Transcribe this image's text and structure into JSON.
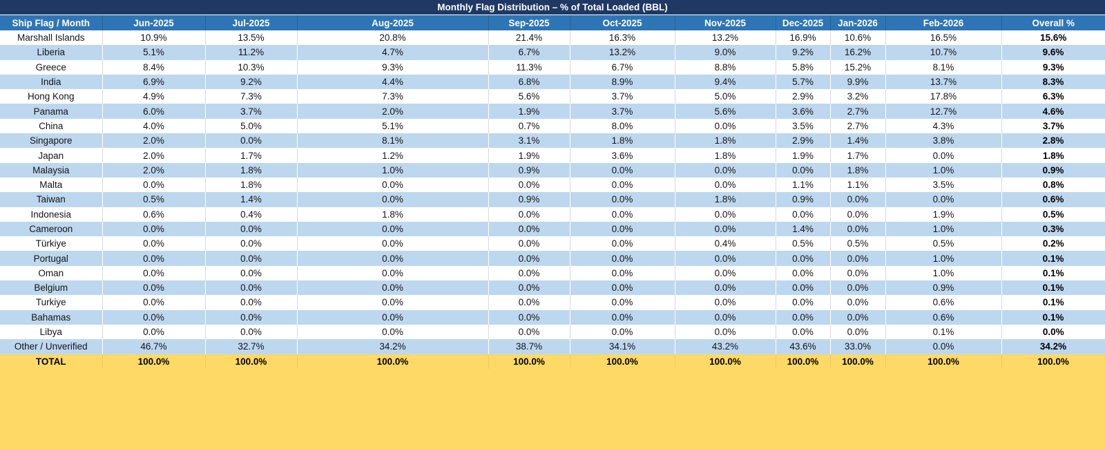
{
  "title": "Monthly Flag Distribution – % of Total Loaded (BBL)",
  "colors": {
    "title_bar_bg": "#1F3864",
    "header_bg": "#2E75B6",
    "band_row_bg": "#BDD7EE",
    "white_row_bg": "#FFFFFF",
    "total_row_bg": "#FFD966",
    "header_text": "#FFFFFF",
    "body_text": "#000000"
  },
  "chart_data": {
    "type": "table",
    "columns": [
      "Ship Flag / Month",
      "Jun-2025",
      "Jul-2025",
      "Aug-2025",
      "Sep-2025",
      "Oct-2025",
      "Nov-2025",
      "Dec-2025",
      "Jan-2026",
      "Feb-2026",
      "Overall %"
    ],
    "rows": [
      {
        "flag": "Marshall Islands",
        "values": [
          "10.9%",
          "13.5%",
          "20.8%",
          "21.4%",
          "16.3%",
          "13.2%",
          "16.9%",
          "10.6%",
          "16.5%",
          "15.6%"
        ]
      },
      {
        "flag": "Liberia",
        "values": [
          "5.1%",
          "11.2%",
          "4.7%",
          "6.7%",
          "13.2%",
          "9.0%",
          "9.2%",
          "16.2%",
          "10.7%",
          "9.6%"
        ]
      },
      {
        "flag": "Greece",
        "values": [
          "8.4%",
          "10.3%",
          "9.3%",
          "11.3%",
          "6.7%",
          "8.8%",
          "5.8%",
          "15.2%",
          "8.1%",
          "9.3%"
        ]
      },
      {
        "flag": "India",
        "values": [
          "6.9%",
          "9.2%",
          "4.4%",
          "6.8%",
          "8.9%",
          "9.4%",
          "5.7%",
          "9.9%",
          "13.7%",
          "8.3%"
        ]
      },
      {
        "flag": "Hong Kong",
        "values": [
          "4.9%",
          "7.3%",
          "7.3%",
          "5.6%",
          "3.7%",
          "5.0%",
          "2.9%",
          "3.2%",
          "17.8%",
          "6.3%"
        ]
      },
      {
        "flag": "Panama",
        "values": [
          "6.0%",
          "3.7%",
          "2.0%",
          "1.9%",
          "3.7%",
          "5.6%",
          "3.6%",
          "2.7%",
          "12.7%",
          "4.6%"
        ]
      },
      {
        "flag": "China",
        "values": [
          "4.0%",
          "5.0%",
          "5.1%",
          "0.7%",
          "8.0%",
          "0.0%",
          "3.5%",
          "2.7%",
          "4.3%",
          "3.7%"
        ]
      },
      {
        "flag": "Singapore",
        "values": [
          "2.0%",
          "0.0%",
          "8.1%",
          "3.1%",
          "1.8%",
          "1.8%",
          "2.9%",
          "1.4%",
          "3.8%",
          "2.8%"
        ]
      },
      {
        "flag": "Japan",
        "values": [
          "2.0%",
          "1.7%",
          "1.2%",
          "1.9%",
          "3.6%",
          "1.8%",
          "1.9%",
          "1.7%",
          "0.0%",
          "1.8%"
        ]
      },
      {
        "flag": "Malaysia",
        "values": [
          "2.0%",
          "1.8%",
          "1.0%",
          "0.9%",
          "0.0%",
          "0.0%",
          "0.0%",
          "1.8%",
          "1.0%",
          "0.9%"
        ]
      },
      {
        "flag": "Malta",
        "values": [
          "0.0%",
          "1.8%",
          "0.0%",
          "0.0%",
          "0.0%",
          "0.0%",
          "1.1%",
          "1.1%",
          "3.5%",
          "0.8%"
        ]
      },
      {
        "flag": "Taiwan",
        "values": [
          "0.5%",
          "1.4%",
          "0.0%",
          "0.9%",
          "0.0%",
          "1.8%",
          "0.9%",
          "0.0%",
          "0.0%",
          "0.6%"
        ]
      },
      {
        "flag": "Indonesia",
        "values": [
          "0.6%",
          "0.4%",
          "1.8%",
          "0.0%",
          "0.0%",
          "0.0%",
          "0.0%",
          "0.0%",
          "1.9%",
          "0.5%"
        ]
      },
      {
        "flag": "Cameroon",
        "values": [
          "0.0%",
          "0.0%",
          "0.0%",
          "0.0%",
          "0.0%",
          "0.0%",
          "1.4%",
          "0.0%",
          "1.0%",
          "0.3%"
        ]
      },
      {
        "flag": "Türkiye",
        "values": [
          "0.0%",
          "0.0%",
          "0.0%",
          "0.0%",
          "0.0%",
          "0.4%",
          "0.5%",
          "0.5%",
          "0.5%",
          "0.2%"
        ]
      },
      {
        "flag": "Portugal",
        "values": [
          "0.0%",
          "0.0%",
          "0.0%",
          "0.0%",
          "0.0%",
          "0.0%",
          "0.0%",
          "0.0%",
          "1.0%",
          "0.1%"
        ]
      },
      {
        "flag": "Oman",
        "values": [
          "0.0%",
          "0.0%",
          "0.0%",
          "0.0%",
          "0.0%",
          "0.0%",
          "0.0%",
          "0.0%",
          "1.0%",
          "0.1%"
        ]
      },
      {
        "flag": "Belgium",
        "values": [
          "0.0%",
          "0.0%",
          "0.0%",
          "0.0%",
          "0.0%",
          "0.0%",
          "0.0%",
          "0.0%",
          "0.9%",
          "0.1%"
        ]
      },
      {
        "flag": "Turkiye",
        "values": [
          "0.0%",
          "0.0%",
          "0.0%",
          "0.0%",
          "0.0%",
          "0.0%",
          "0.0%",
          "0.0%",
          "0.6%",
          "0.1%"
        ]
      },
      {
        "flag": "Bahamas",
        "values": [
          "0.0%",
          "0.0%",
          "0.0%",
          "0.0%",
          "0.0%",
          "0.0%",
          "0.0%",
          "0.0%",
          "0.6%",
          "0.1%"
        ]
      },
      {
        "flag": "Libya",
        "values": [
          "0.0%",
          "0.0%",
          "0.0%",
          "0.0%",
          "0.0%",
          "0.0%",
          "0.0%",
          "0.0%",
          "0.1%",
          "0.0%"
        ]
      },
      {
        "flag": "Other / Unverified",
        "values": [
          "46.7%",
          "32.7%",
          "34.2%",
          "38.7%",
          "34.1%",
          "43.2%",
          "43.6%",
          "33.0%",
          "0.0%",
          "34.2%"
        ]
      }
    ],
    "total": {
      "flag": "TOTAL",
      "values": [
        "100.0%",
        "100.0%",
        "100.0%",
        "100.0%",
        "100.0%",
        "100.0%",
        "100.0%",
        "100.0%",
        "100.0%",
        "100.0%"
      ]
    }
  }
}
